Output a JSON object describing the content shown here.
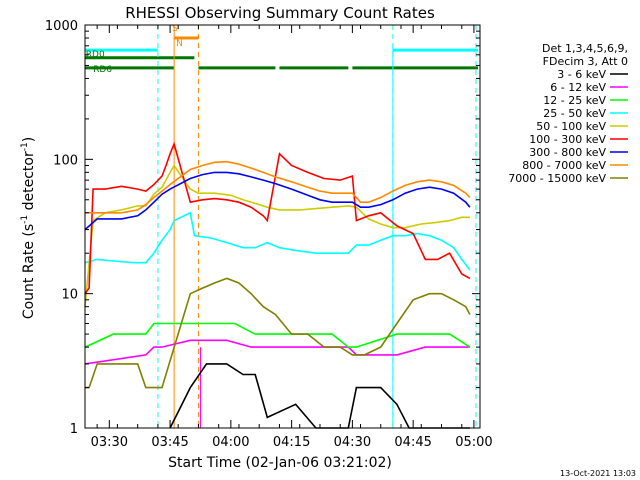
{
  "chart_data": {
    "type": "line",
    "title": "RHESSI Observing Summary Count Rates",
    "xlabel": "Start Time (02-Jan-06 03:21:02)",
    "ylabel_parts": [
      "Count Rate (s",
      "-1",
      " detector",
      "-1",
      ")"
    ],
    "x_range_minutes": [
      3.0,
      100.5
    ],
    "y_scale": "log",
    "ylim": [
      1,
      1000
    ],
    "x_ticks": [
      {
        "label": "03:30",
        "t": 9.0
      },
      {
        "label": "03:45",
        "t": 24.0
      },
      {
        "label": "04:00",
        "t": 39.0
      },
      {
        "label": "04:15",
        "t": 54.0
      },
      {
        "label": "04:30",
        "t": 69.0
      },
      {
        "label": "04:45",
        "t": 84.0
      },
      {
        "label": "05:00",
        "t": 99.0
      }
    ],
    "y_ticks": [
      {
        "label": "1",
        "v": 1
      },
      {
        "label": "10",
        "v": 10
      },
      {
        "label": "100",
        "v": 100
      },
      {
        "label": "1000",
        "v": 1000
      }
    ],
    "legend_header": [
      "Det 1,3,4,5,6,9,",
      "FDecim 3, Att 0"
    ],
    "series": [
      {
        "name": "3 - 6 keV",
        "color": "#000000",
        "points": [
          [
            24,
            1
          ],
          [
            29,
            2
          ],
          [
            33,
            3
          ],
          [
            38,
            3
          ],
          [
            42,
            2.5
          ],
          [
            45,
            2.5
          ],
          [
            48,
            1.2
          ],
          [
            55,
            1.5
          ],
          [
            60,
            1
          ],
          [
            64,
            1
          ],
          [
            68,
            1
          ],
          [
            70,
            2
          ],
          [
            76,
            2
          ],
          [
            80,
            1.5
          ],
          [
            83,
            1
          ],
          [
            98,
            1
          ]
        ]
      },
      {
        "name": "6 - 12 keV",
        "color": "#ff00ff",
        "points": [
          [
            3,
            3
          ],
          [
            18,
            3.5
          ],
          [
            20,
            4
          ],
          [
            22,
            4
          ],
          [
            29,
            4.5
          ],
          [
            38,
            4.5
          ],
          [
            44,
            4
          ],
          [
            52,
            4
          ],
          [
            56,
            4
          ],
          [
            64,
            4
          ],
          [
            68,
            4
          ],
          [
            70,
            3.5
          ],
          [
            80,
            3.5
          ],
          [
            87,
            4
          ],
          [
            93,
            4
          ],
          [
            98,
            4
          ]
        ]
      },
      {
        "name": "12 - 25 keV",
        "color": "#00ff00",
        "points": [
          [
            3,
            4
          ],
          [
            10,
            5
          ],
          [
            18,
            5
          ],
          [
            20,
            6
          ],
          [
            22,
            6
          ],
          [
            29,
            6
          ],
          [
            35,
            6
          ],
          [
            40,
            6
          ],
          [
            45,
            5
          ],
          [
            52,
            5
          ],
          [
            56,
            5
          ],
          [
            64,
            5
          ],
          [
            68,
            4
          ],
          [
            70,
            4
          ],
          [
            80,
            5
          ],
          [
            87,
            5
          ],
          [
            93,
            5
          ],
          [
            98,
            4
          ]
        ]
      },
      {
        "name": "25 - 50 keV",
        "color": "#00ffff",
        "points": [
          [
            3,
            17
          ],
          [
            6,
            18
          ],
          [
            10,
            17.5
          ],
          [
            15,
            17
          ],
          [
            18,
            17
          ],
          [
            20,
            20
          ],
          [
            22,
            25
          ],
          [
            24,
            30
          ],
          [
            25,
            35
          ],
          [
            29,
            40
          ],
          [
            30,
            27
          ],
          [
            34,
            26
          ],
          [
            38,
            24
          ],
          [
            42,
            22
          ],
          [
            45,
            22
          ],
          [
            48,
            24
          ],
          [
            51,
            22
          ],
          [
            55,
            21
          ],
          [
            60,
            20
          ],
          [
            64,
            20
          ],
          [
            68,
            20
          ],
          [
            70,
            23
          ],
          [
            73,
            23
          ],
          [
            76,
            25
          ],
          [
            79,
            27
          ],
          [
            82,
            27
          ],
          [
            85,
            28
          ],
          [
            88,
            27
          ],
          [
            91,
            25
          ],
          [
            94,
            22
          ],
          [
            96,
            18
          ],
          [
            98,
            15
          ]
        ]
      },
      {
        "name": "50 - 100 keV",
        "color": "#cccc00",
        "points": [
          [
            3,
            8
          ],
          [
            5,
            35
          ],
          [
            8,
            40
          ],
          [
            12,
            42
          ],
          [
            16,
            45
          ],
          [
            18,
            45
          ],
          [
            20,
            55
          ],
          [
            22,
            62
          ],
          [
            23,
            70
          ],
          [
            24,
            80
          ],
          [
            25,
            90
          ],
          [
            29,
            60
          ],
          [
            31,
            56
          ],
          [
            35,
            56
          ],
          [
            39,
            54
          ],
          [
            42,
            50
          ],
          [
            45,
            47
          ],
          [
            48,
            44
          ],
          [
            51,
            42
          ],
          [
            56,
            42
          ],
          [
            60,
            43
          ],
          [
            64,
            44
          ],
          [
            68,
            45
          ],
          [
            70,
            44
          ],
          [
            73,
            36
          ],
          [
            76,
            33
          ],
          [
            79,
            31
          ],
          [
            82,
            31
          ],
          [
            86,
            33
          ],
          [
            90,
            34
          ],
          [
            93,
            35
          ],
          [
            96,
            37
          ],
          [
            98,
            37
          ]
        ]
      },
      {
        "name": "100 - 300 keV",
        "color": "#ff0000",
        "points": [
          [
            3,
            10
          ],
          [
            4,
            11
          ],
          [
            5,
            60
          ],
          [
            8,
            60
          ],
          [
            12,
            63
          ],
          [
            16,
            60
          ],
          [
            18,
            58
          ],
          [
            20,
            65
          ],
          [
            22,
            75
          ],
          [
            23,
            90
          ],
          [
            24,
            110
          ],
          [
            25,
            130
          ],
          [
            29,
            48
          ],
          [
            32,
            50
          ],
          [
            35,
            51
          ],
          [
            38,
            50
          ],
          [
            41,
            48
          ],
          [
            44,
            44
          ],
          [
            47,
            38
          ],
          [
            48,
            35
          ],
          [
            51,
            110
          ],
          [
            54,
            90
          ],
          [
            58,
            80
          ],
          [
            62,
            72
          ],
          [
            66,
            70
          ],
          [
            69,
            75
          ],
          [
            70,
            35
          ],
          [
            73,
            38
          ],
          [
            76,
            40
          ],
          [
            80,
            32
          ],
          [
            84,
            28
          ],
          [
            87,
            18
          ],
          [
            90,
            18
          ],
          [
            93,
            20
          ],
          [
            96,
            14
          ],
          [
            98,
            13
          ]
        ]
      },
      {
        "name": "300 - 800 keV",
        "color": "#0000ff",
        "points": [
          [
            3,
            30
          ],
          [
            6,
            36
          ],
          [
            9,
            36
          ],
          [
            12,
            36
          ],
          [
            16,
            38
          ],
          [
            18,
            42
          ],
          [
            20,
            48
          ],
          [
            22,
            55
          ],
          [
            24,
            60
          ],
          [
            29,
            72
          ],
          [
            32,
            77
          ],
          [
            35,
            80
          ],
          [
            38,
            80
          ],
          [
            41,
            78
          ],
          [
            44,
            74
          ],
          [
            47,
            70
          ],
          [
            50,
            66
          ],
          [
            54,
            60
          ],
          [
            58,
            54
          ],
          [
            61,
            50
          ],
          [
            64,
            48
          ],
          [
            67,
            48
          ],
          [
            69,
            48
          ],
          [
            71,
            44
          ],
          [
            73,
            44
          ],
          [
            76,
            46
          ],
          [
            79,
            50
          ],
          [
            82,
            56
          ],
          [
            85,
            60
          ],
          [
            88,
            62
          ],
          [
            91,
            60
          ],
          [
            94,
            56
          ],
          [
            97,
            48
          ],
          [
            98,
            44
          ]
        ]
      },
      {
        "name": "800 - 7000 keV",
        "color": "#ff8800",
        "points": [
          [
            3,
            40
          ],
          [
            6,
            40
          ],
          [
            9,
            40
          ],
          [
            12,
            40
          ],
          [
            16,
            42
          ],
          [
            18,
            46
          ],
          [
            20,
            52
          ],
          [
            22,
            58
          ],
          [
            24,
            65
          ],
          [
            29,
            84
          ],
          [
            32,
            90
          ],
          [
            35,
            95
          ],
          [
            38,
            96
          ],
          [
            41,
            92
          ],
          [
            44,
            86
          ],
          [
            47,
            80
          ],
          [
            50,
            74
          ],
          [
            54,
            68
          ],
          [
            58,
            62
          ],
          [
            61,
            58
          ],
          [
            64,
            56
          ],
          [
            67,
            56
          ],
          [
            69,
            56
          ],
          [
            71,
            48
          ],
          [
            73,
            48
          ],
          [
            76,
            52
          ],
          [
            79,
            58
          ],
          [
            82,
            64
          ],
          [
            85,
            68
          ],
          [
            88,
            70
          ],
          [
            91,
            68
          ],
          [
            94,
            64
          ],
          [
            97,
            56
          ],
          [
            98,
            52
          ]
        ]
      },
      {
        "name": "7000 - 15000 keV",
        "color": "#808000",
        "points": [
          [
            3,
            2
          ],
          [
            4,
            2
          ],
          [
            6,
            3
          ],
          [
            10,
            3
          ],
          [
            14,
            3
          ],
          [
            16,
            3
          ],
          [
            18,
            2
          ],
          [
            22,
            2
          ],
          [
            29,
            10
          ],
          [
            32,
            11
          ],
          [
            35,
            12
          ],
          [
            38,
            13
          ],
          [
            41,
            12
          ],
          [
            44,
            10
          ],
          [
            47,
            8
          ],
          [
            50,
            7
          ],
          [
            54,
            5
          ],
          [
            58,
            5
          ],
          [
            62,
            4
          ],
          [
            66,
            4
          ],
          [
            69,
            3.5
          ],
          [
            72,
            3.5
          ],
          [
            76,
            4
          ],
          [
            80,
            6
          ],
          [
            84,
            9
          ],
          [
            88,
            10
          ],
          [
            91,
            10
          ],
          [
            94,
            9
          ],
          [
            97,
            8
          ],
          [
            98,
            7
          ]
        ]
      }
    ],
    "state_bars": [
      {
        "label": "S",
        "color": "#ff8800",
        "y": 800,
        "segments": [
          [
            25,
            31
          ]
        ]
      },
      {
        "label": "N",
        "color": "#ff8800",
        "y": 780,
        "segments": []
      },
      {
        "label": "RD0",
        "color": "#00ffff",
        "y": 650,
        "segments": [
          [
            3,
            21
          ],
          [
            79,
            100
          ]
        ]
      },
      {
        "label": "RD6",
        "color": "#007700",
        "y": 480,
        "segments": [
          [
            3,
            25
          ],
          [
            31,
            50
          ],
          [
            51,
            68
          ],
          [
            69,
            100
          ]
        ]
      }
    ],
    "green_topbar": {
      "color": "#007700",
      "y": 570,
      "segments": [
        [
          3,
          30
        ]
      ]
    },
    "vlines_cyan": [
      21,
      79,
      99.5
    ],
    "vlines_orange_dashed": [
      31
    ],
    "vlines_orange_solid": [
      25
    ],
    "vlines_magenta": [
      31.5
    ],
    "vlines_cyan_solid": [
      79
    ],
    "footer_timestamp": "13-Oct-2021 13:03"
  }
}
